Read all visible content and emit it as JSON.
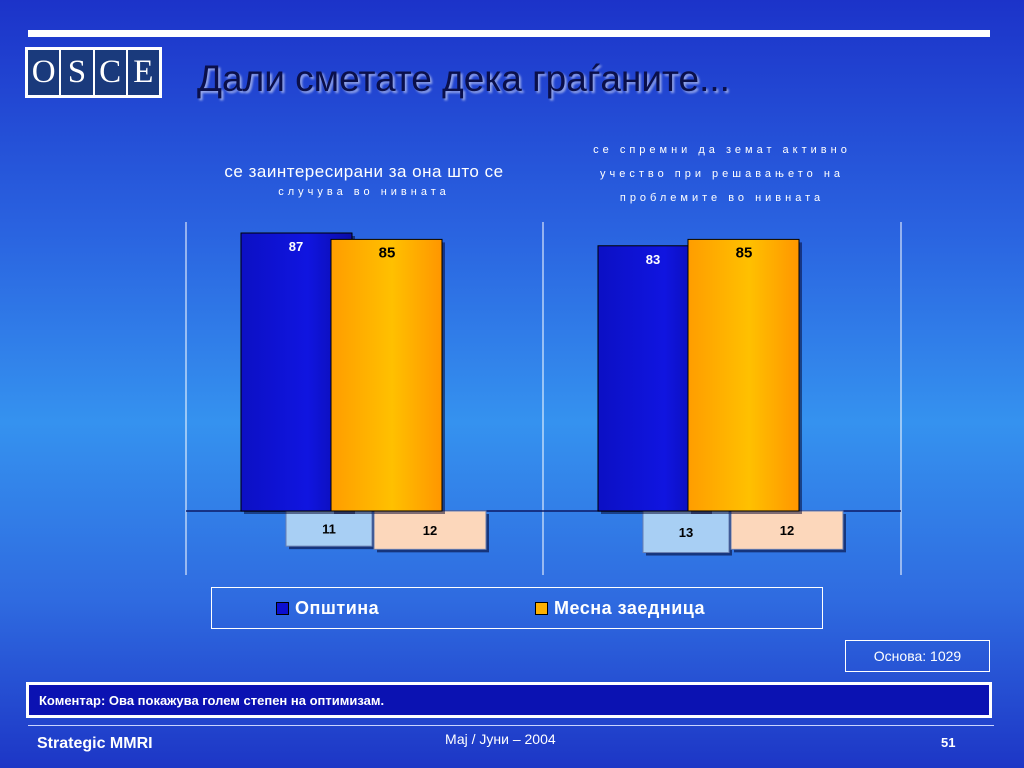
{
  "header": {
    "logo_letters": [
      "O",
      "S",
      "C",
      "E"
    ],
    "title": "Дали сметате дека граѓаните..."
  },
  "chart_data": {
    "type": "bar",
    "categories": [
      "се заинтересирани за она што се случува во нивната",
      "се спремни да земат активно учество при решавањето на проблемите во нивната"
    ],
    "category_lines": [
      [
        "се заинтересирани за она што се",
        "случува во нивната"
      ],
      [
        "се спремни да земат активно",
        "учество при решавањето на",
        "проблемите во нивната"
      ]
    ],
    "series": [
      {
        "name": "Општина",
        "values": [
          87,
          83
        ],
        "negative_values": [
          11,
          13
        ],
        "color": "#0b0fd0",
        "negative_color": "#a8cff4"
      },
      {
        "name": "Месна заедница",
        "values": [
          85,
          85
        ],
        "negative_values": [
          12,
          12
        ],
        "color": "#ffb000",
        "negative_color": "#fcd7bb"
      }
    ],
    "ylim": [
      -13,
      87
    ],
    "grid": false,
    "legend_position": "bottom"
  },
  "base_note": "Основа: 1029",
  "comment": "Коментар: Ова покажува голем степен на оптимизам.",
  "footer": {
    "left": "Strategic MMRI",
    "center": "Мај / Јуни – 2004",
    "page_number": "51"
  }
}
